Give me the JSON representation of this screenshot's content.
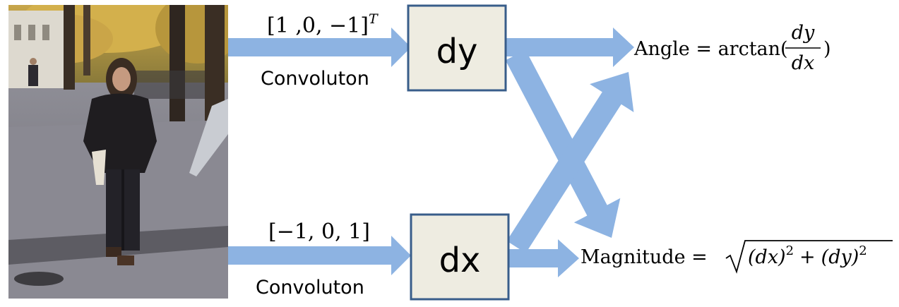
{
  "photo": {
    "subject": "pedestrian walking on autumn sidewalk"
  },
  "top_branch": {
    "kernel_label": "[1 ,0, −1]",
    "kernel_superscript": "T",
    "operation_label": "Convoluton",
    "box_label": "dy"
  },
  "bottom_branch": {
    "kernel_label": "[−1, 0, 1]",
    "operation_label": "Convoluton",
    "box_label": "dx"
  },
  "angle_formula": {
    "prefix": "Angle = arctan(",
    "numerator": "dy",
    "denominator": "dx",
    "suffix": ")"
  },
  "magnitude_formula": {
    "prefix": "Magnitude =",
    "radicand_a": "(dx)",
    "exp_a": "2",
    "plus": "+",
    "radicand_b": "(dy)",
    "exp_b": "2"
  },
  "colors": {
    "arrow": "#8db3e2",
    "box_fill": "#eeece1",
    "box_border": "#385d8a",
    "text": "#000000"
  }
}
